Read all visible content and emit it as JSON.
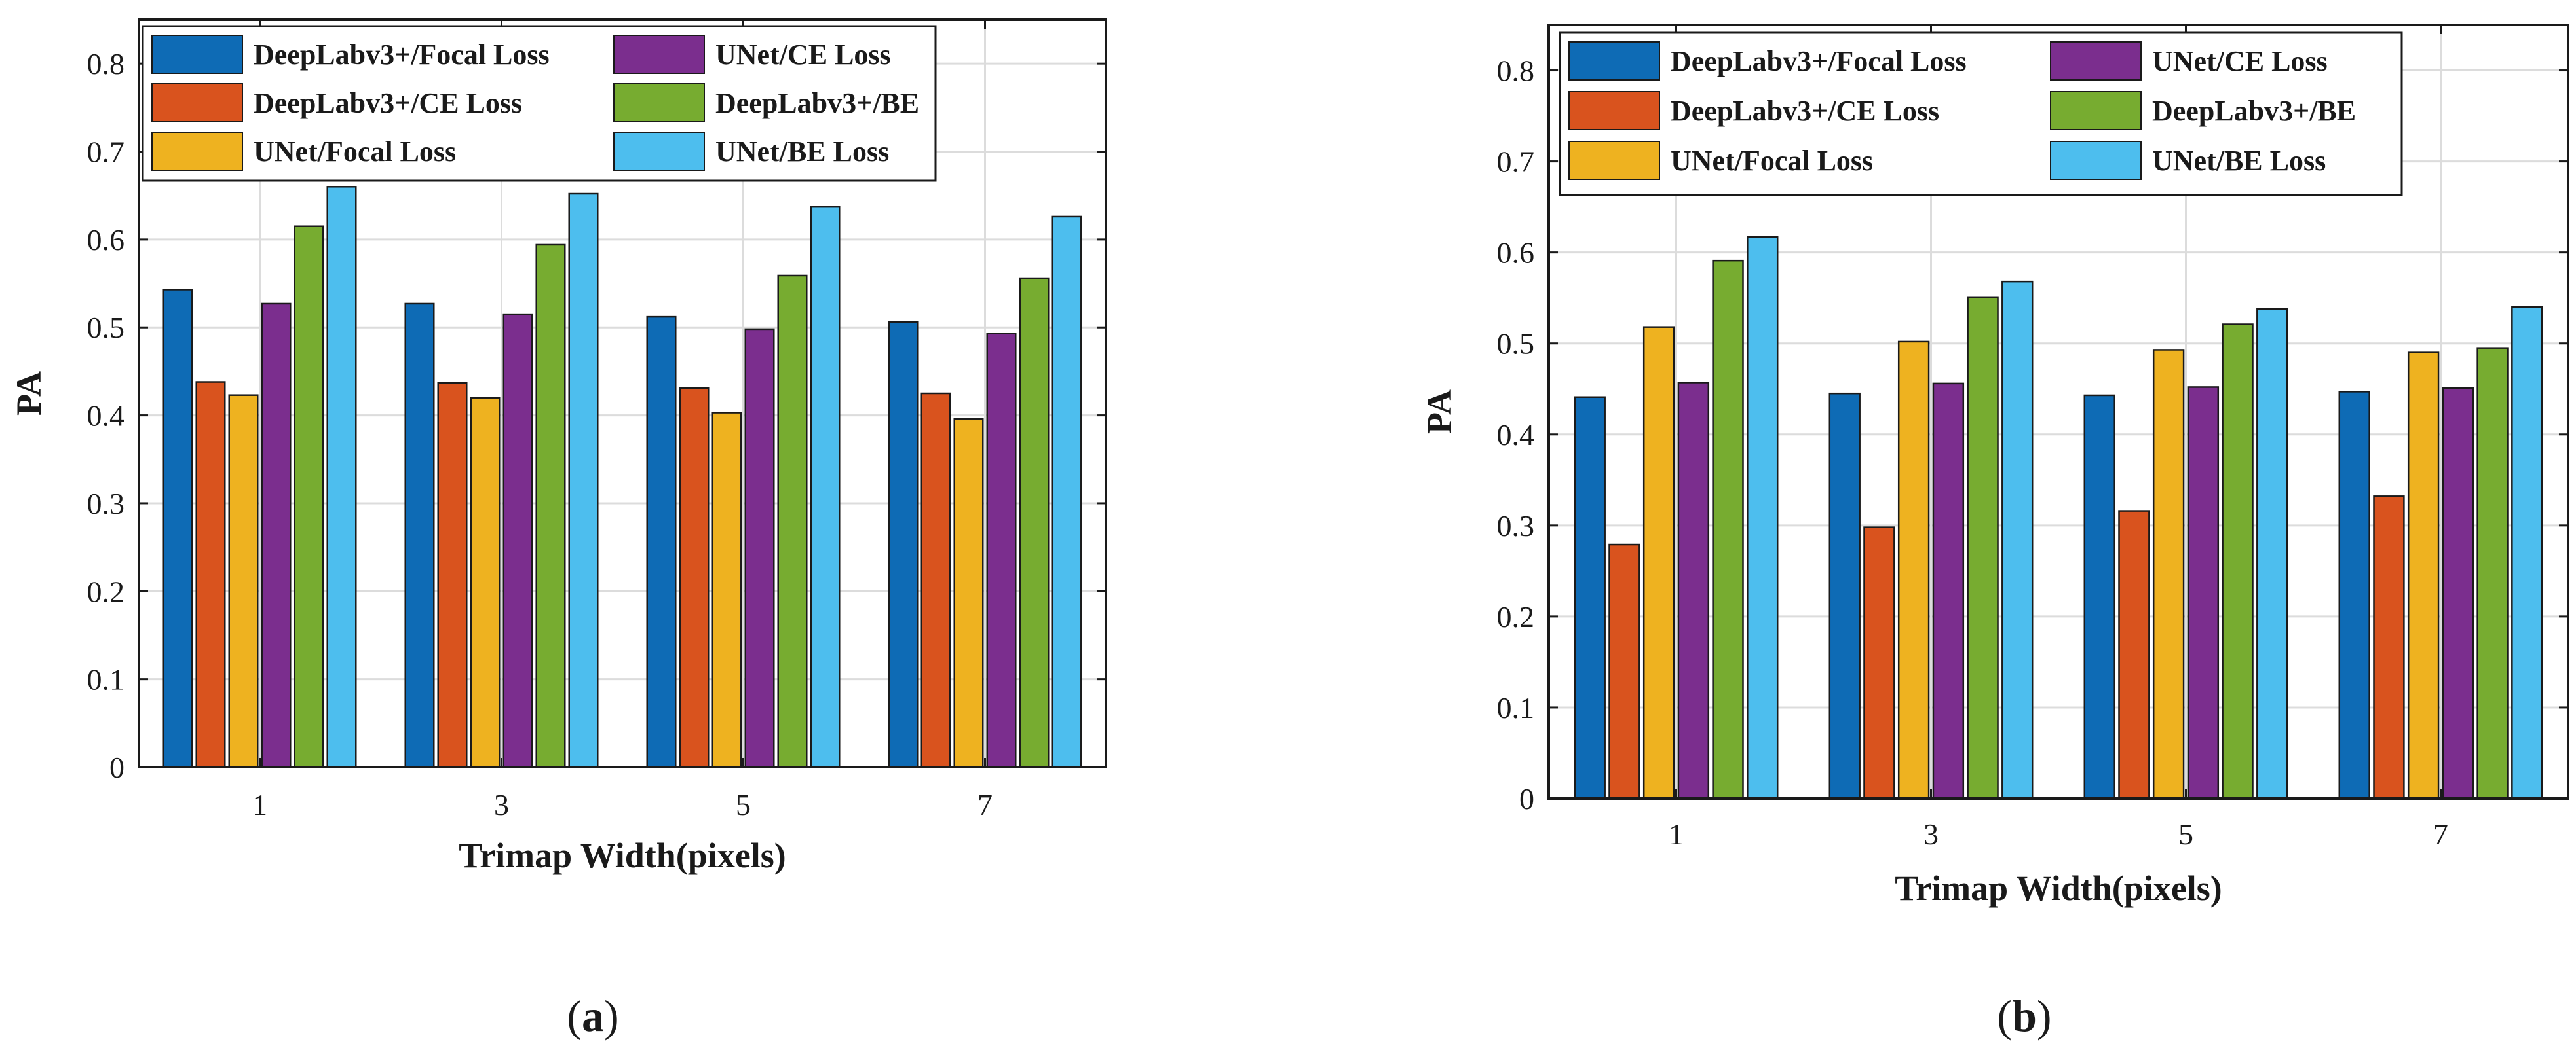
{
  "chart_data": [
    {
      "type": "bar",
      "panel_label": "a",
      "title": "",
      "xlabel": "Trimap Width(pixels)",
      "ylabel": "PA",
      "ylim": [
        0,
        0.85
      ],
      "yticks": [
        0,
        0.1,
        0.2,
        0.3,
        0.4,
        0.5,
        0.6,
        0.7,
        0.8
      ],
      "ytick_labels": [
        "0",
        "0.1",
        "0.2",
        "0.3",
        "0.4",
        "0.5",
        "0.6",
        "0.7",
        "0.8"
      ],
      "grid": true,
      "legend_position": "top-left",
      "categories": [
        "1",
        "3",
        "5",
        "7"
      ],
      "series": [
        {
          "name": "DeepLabv3+/Focal Loss",
          "color": "#0E6BB5",
          "values": [
            0.543,
            0.527,
            0.512,
            0.506
          ]
        },
        {
          "name": "DeepLabv3+/CE Loss",
          "color": "#D9531E",
          "values": [
            0.438,
            0.437,
            0.431,
            0.425
          ]
        },
        {
          "name": "UNet/Focal Loss",
          "color": "#EEB220",
          "values": [
            0.423,
            0.42,
            0.403,
            0.396
          ]
        },
        {
          "name": "UNet/CE Loss",
          "color": "#7B2E8E",
          "values": [
            0.527,
            0.515,
            0.498,
            0.493
          ]
        },
        {
          "name": "DeepLabv3+/BE",
          "color": "#77AC30",
          "values": [
            0.615,
            0.594,
            0.559,
            0.556
          ]
        },
        {
          "name": "UNet/BE Loss",
          "color": "#4DBEEE",
          "values": [
            0.66,
            0.652,
            0.637,
            0.626
          ]
        }
      ]
    },
    {
      "type": "bar",
      "panel_label": "b",
      "title": "",
      "xlabel": "Trimap Width(pixels)",
      "ylabel": "PA",
      "ylim": [
        0,
        0.85
      ],
      "yticks": [
        0,
        0.1,
        0.2,
        0.3,
        0.4,
        0.5,
        0.6,
        0.7,
        0.8
      ],
      "ytick_labels": [
        "0",
        "0.1",
        "0.2",
        "0.3",
        "0.4",
        "0.5",
        "0.6",
        "0.7",
        "0.8"
      ],
      "grid": true,
      "legend_position": "top-left",
      "categories": [
        "1",
        "3",
        "5",
        "7"
      ],
      "series": [
        {
          "name": "DeepLabv3+/Focal Loss",
          "color": "#0E6BB5",
          "values": [
            0.441,
            0.445,
            0.443,
            0.447
          ]
        },
        {
          "name": "DeepLabv3+/CE Loss",
          "color": "#D9531E",
          "values": [
            0.279,
            0.298,
            0.316,
            0.332
          ]
        },
        {
          "name": "UNet/Focal Loss",
          "color": "#EEB220",
          "values": [
            0.518,
            0.502,
            0.493,
            0.49
          ]
        },
        {
          "name": "UNet/CE Loss",
          "color": "#7B2E8E",
          "values": [
            0.457,
            0.456,
            0.452,
            0.451
          ]
        },
        {
          "name": "DeepLabv3+/BE",
          "color": "#77AC30",
          "values": [
            0.591,
            0.551,
            0.521,
            0.495
          ]
        },
        {
          "name": "UNet/BE Loss",
          "color": "#4DBEEE",
          "values": [
            0.617,
            0.568,
            0.538,
            0.54
          ]
        }
      ]
    }
  ]
}
